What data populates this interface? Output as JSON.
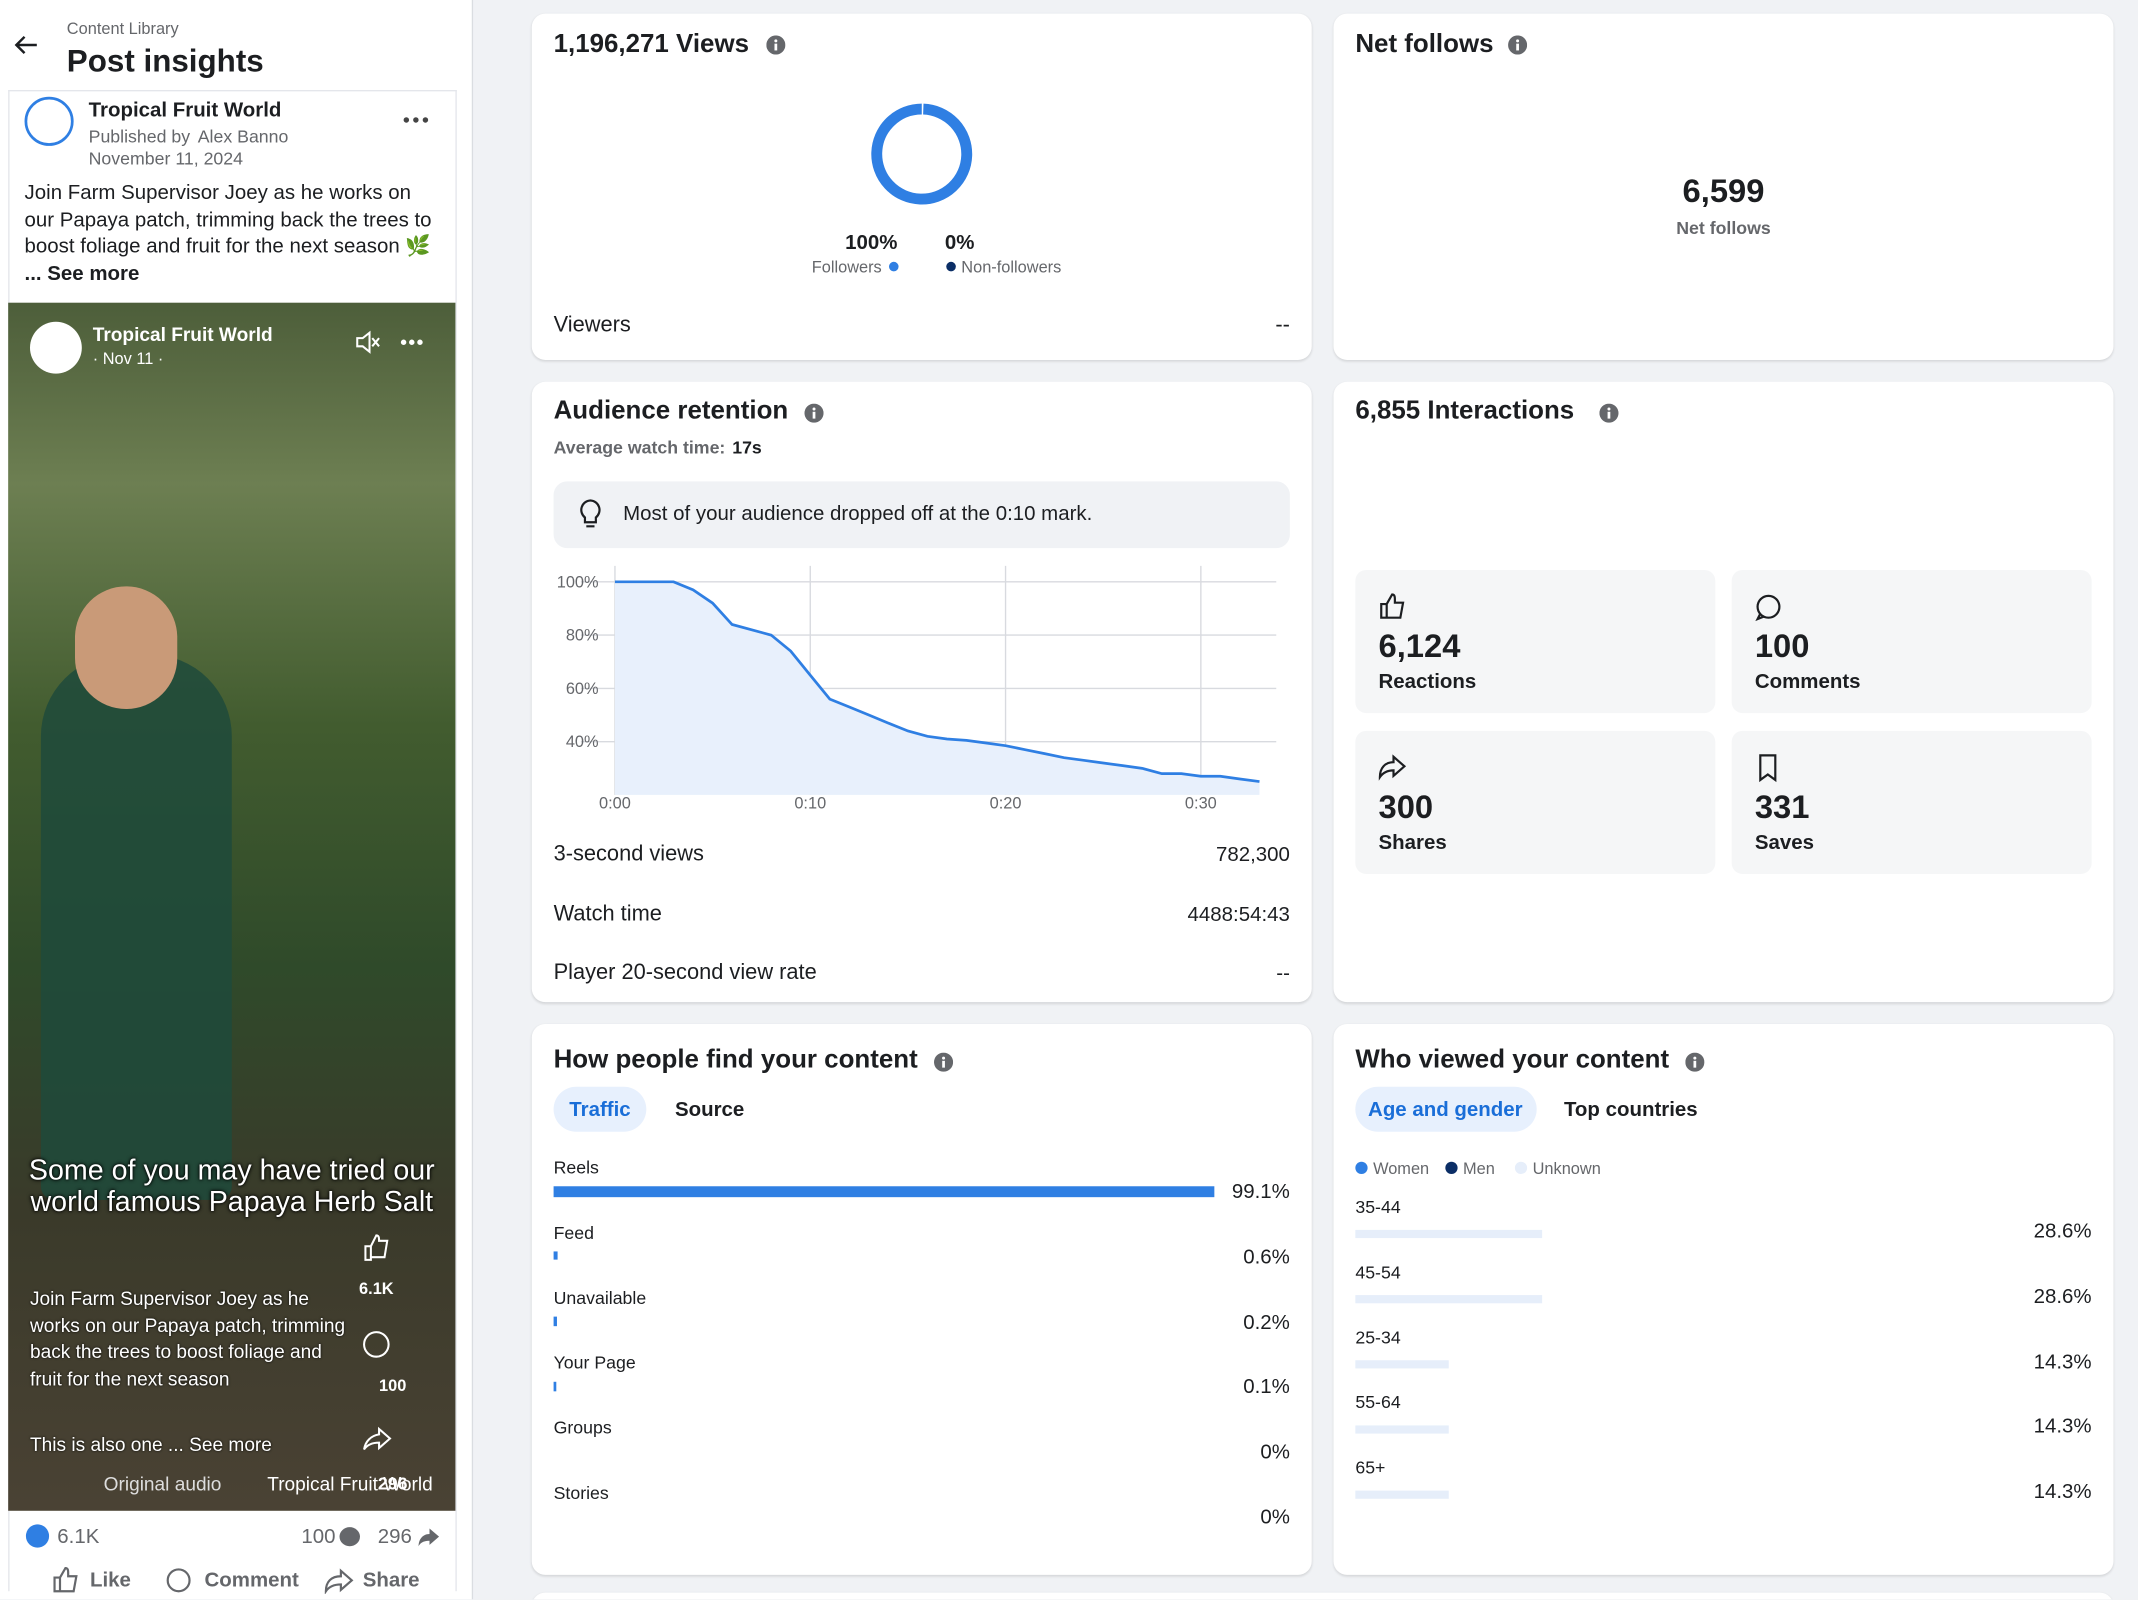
{
  "sidebar": {
    "breadcrumb": "Content Library",
    "title": "Post insights",
    "post": {
      "page_name": "Tropical Fruit World",
      "published_by": "Published by",
      "author": "Alex Banno",
      "date": "November 11, 2024",
      "text": "Join Farm Supervisor Joey as he works on our Papaya patch, trimming back the trees to boost foliage and fruit for the next season 🌿",
      "see_more": "... See more",
      "video": {
        "page_name": "Tropical Fruit World",
        "date": "· Nov 11 ·",
        "caption": "Some of you may have tried our world famous Papaya Herb Salt",
        "description": "Join Farm Supervisor Joey as he works on our Papaya patch, trimming back the trees to boost foliage and fruit for the next season",
        "description_more": "This is also one ... See more",
        "audio": "Original audio",
        "audio_page": "Tropical Fruit World",
        "likes": "6.1K",
        "comments": "100",
        "shares": "296"
      },
      "reactions": "6.1K",
      "comments": "100",
      "shares": "296",
      "actions": [
        "Like",
        "Comment",
        "Share"
      ]
    }
  },
  "views": {
    "title": "1,196,271 Views",
    "donut": {
      "labels": [
        "Followers",
        "Non-followers"
      ],
      "values": [
        100,
        0
      ],
      "value_labels": [
        "100%",
        "0%"
      ],
      "colors": [
        "#2f7fe3",
        "#0b2e66"
      ]
    },
    "viewers_label": "Viewers",
    "viewers_value": "--"
  },
  "net_follows": {
    "title": "Net follows",
    "value": "6,599",
    "label": "Net follows"
  },
  "retention": {
    "title": "Audience retention",
    "avg_label": "Average watch time:",
    "avg_value": "17s",
    "insight": "Most of your audience dropped off at the 0:10 mark.",
    "chart": {
      "type": "line",
      "color": "#2f7fe3",
      "grid": true,
      "x": [
        0,
        1,
        2,
        3,
        4,
        5,
        6,
        7,
        8,
        9,
        10,
        11,
        12,
        13,
        14,
        15,
        16,
        17,
        18,
        19,
        20,
        21,
        22,
        23,
        24,
        25,
        26,
        27,
        28,
        29,
        30,
        31,
        32,
        33
      ],
      "values": [
        100,
        100,
        100,
        100,
        97,
        92,
        84,
        82,
        80,
        74,
        65,
        56,
        53,
        50,
        47,
        44,
        42,
        41,
        40.5,
        39.5,
        38.5,
        37,
        35.5,
        34,
        33,
        32,
        31,
        30,
        28,
        28,
        27,
        27,
        26,
        25
      ],
      "xlim": [
        0,
        34
      ],
      "ylim": [
        20,
        106
      ],
      "xticks": [
        {
          "value": 0,
          "label": "0:00"
        },
        {
          "value": 10,
          "label": "0:10"
        },
        {
          "value": 20,
          "label": "0:20"
        },
        {
          "value": 30,
          "label": "0:30"
        }
      ],
      "yticks": [
        {
          "value": 100,
          "label": "100%"
        },
        {
          "value": 80,
          "label": "80%"
        },
        {
          "value": 60,
          "label": "60%"
        },
        {
          "value": 40,
          "label": "40%"
        }
      ]
    },
    "metrics": [
      {
        "label": "3-second views",
        "value": "782,300"
      },
      {
        "label": "Watch time",
        "value": "4488:54:43"
      },
      {
        "label": "Player 20-second view rate",
        "value": "--"
      }
    ]
  },
  "interactions": {
    "title": "6,855 Interactions",
    "items": [
      {
        "value": "6,124",
        "label": "Reactions"
      },
      {
        "value": "100",
        "label": "Comments"
      },
      {
        "value": "300",
        "label": "Shares"
      },
      {
        "value": "331",
        "label": "Saves"
      }
    ]
  },
  "find": {
    "title": "How people find your content",
    "tabs": [
      "Traffic",
      "Source"
    ],
    "chart": {
      "type": "bar",
      "color": "#2f7fe3",
      "categories": [
        "Reels",
        "Feed",
        "Unavailable",
        "Your Page",
        "Groups",
        "Stories"
      ],
      "values": [
        99.1,
        0.6,
        0.2,
        0.1,
        0,
        0
      ],
      "value_labels": [
        "99.1%",
        "0.6%",
        "0.2%",
        "0.1%",
        "0%",
        "0%"
      ],
      "xlim": [
        0,
        100
      ]
    }
  },
  "who": {
    "title": "Who viewed your content",
    "tabs": [
      "Age and gender",
      "Top countries"
    ],
    "chart": {
      "type": "bar",
      "legend": [
        {
          "name": "Women",
          "color": "#2f7fe3"
        },
        {
          "name": "Men",
          "color": "#0b2e66"
        },
        {
          "name": "Unknown",
          "color": "#e6eefa"
        }
      ],
      "color": "#e6eefa",
      "categories": [
        "35-44",
        "45-54",
        "25-34",
        "55-64",
        "65+"
      ],
      "values": [
        28.6,
        28.6,
        14.3,
        14.3,
        14.3
      ],
      "value_labels": [
        "28.6%",
        "28.6%",
        "14.3%",
        "14.3%",
        "14.3%"
      ],
      "xlim": [
        0,
        100
      ]
    }
  }
}
